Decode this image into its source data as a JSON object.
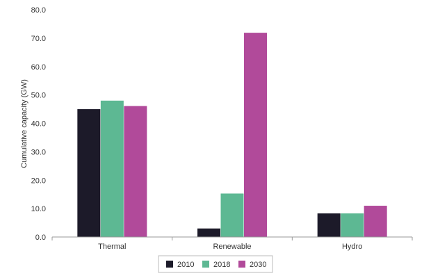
{
  "chart_data": {
    "type": "bar",
    "title": "",
    "xlabel": "",
    "ylabel": "Cumulative capacity (GW)",
    "ylim": [
      0,
      80
    ],
    "yticks": [
      "0.0",
      "10.0",
      "20.0",
      "30.0",
      "40.0",
      "50.0",
      "60.0",
      "70.0",
      "80.0"
    ],
    "categories": [
      "Thermal",
      "Renewable",
      "Hydro"
    ],
    "series": [
      {
        "name": "2010",
        "color": "#1c1a29",
        "values": [
          45.0,
          3.0,
          8.3
        ]
      },
      {
        "name": "2018",
        "color": "#5db893",
        "values": [
          48.0,
          15.3,
          8.3
        ]
      },
      {
        "name": "2030",
        "color": "#b14a9a",
        "values": [
          46.1,
          71.9,
          11.0
        ]
      }
    ],
    "grid": false,
    "legend_position": "bottom-center"
  }
}
